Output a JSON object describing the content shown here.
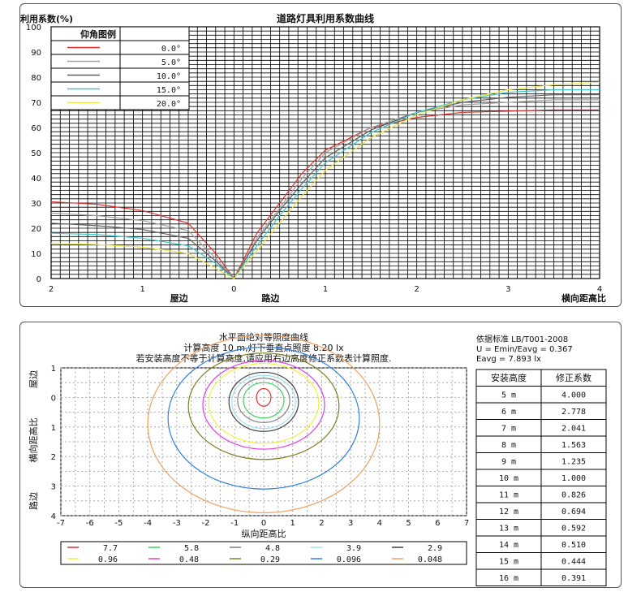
{
  "top": {
    "title": "道路灯具利用系数曲线",
    "ylabel": "利用系数(%)",
    "legend_title": "仰角图例",
    "x_side_labels": [
      "屋边",
      "路边"
    ],
    "x_axis_label": "横向距高比",
    "y_ticks": [
      "0",
      "10",
      "20",
      "30",
      "40",
      "50",
      "60",
      "70",
      "80",
      "90",
      "100"
    ],
    "x_ticks": [
      "2",
      "1",
      "0",
      "1",
      "2",
      "3",
      "4"
    ]
  },
  "bottom": {
    "title_lines": [
      "水平面绝对等照度曲线",
      "计算高度 10 m,灯下垂直点照度  8.20 lx",
      "若安装高度不等于计算高度,请应用右边高度修正系数表计算照度."
    ],
    "standard_lines": [
      "依据标准 LB/T001-2008",
      "U = Emin/Eavg = 0.367",
      "Eavg = 7.893 lx"
    ],
    "table_headers": [
      "安装高度",
      "修正系数"
    ],
    "table_rows": [
      [
        "5 m",
        "4.000"
      ],
      [
        "6 m",
        "2.778"
      ],
      [
        "7 m",
        "2.041"
      ],
      [
        "8 m",
        "1.563"
      ],
      [
        "9 m",
        "1.235"
      ],
      [
        "10 m",
        "1.000"
      ],
      [
        "11 m",
        "0.826"
      ],
      [
        "12 m",
        "0.694"
      ],
      [
        "13 m",
        "0.592"
      ],
      [
        "14 m",
        "0.510"
      ],
      [
        "15 m",
        "0.444"
      ],
      [
        "16 m",
        "0.391"
      ]
    ],
    "x_axis_label": "纵向距高比",
    "y_side_labels": [
      "屋边",
      "横向距高比",
      "路边"
    ],
    "x_ticks": [
      "-7",
      "-6",
      "-5",
      "-4",
      "-3",
      "-2",
      "-1",
      "0",
      "1",
      "2",
      "3",
      "4",
      "5",
      "6",
      "7"
    ],
    "y_ticks": [
      "1",
      "0",
      "1",
      "2",
      "3",
      "4"
    ]
  },
  "chart_data": [
    {
      "type": "line",
      "title": "道路灯具利用系数曲线",
      "ylabel": "利用系数(%)",
      "xlabel": "横向距高比",
      "xlim": [
        -2,
        4
      ],
      "ylim": [
        0,
        100
      ],
      "grid": true,
      "legend_position": "top-left",
      "series": [
        {
          "name": "0.0°",
          "color": "#e03030",
          "x": [
            -2,
            -1.5,
            -1,
            -0.5,
            -0.2,
            0,
            0.25,
            0.5,
            0.75,
            1,
            1.5,
            2,
            2.5,
            3,
            3.5,
            4
          ],
          "y": [
            30.5,
            29.5,
            27,
            22,
            10,
            0,
            18,
            30,
            42,
            51,
            60,
            64,
            66,
            66.5,
            67,
            67
          ]
        },
        {
          "name": "5.0°",
          "color": "#a0a0a0",
          "x": [
            -2,
            -1.5,
            -1,
            -0.5,
            -0.2,
            0,
            0.25,
            0.5,
            0.75,
            1,
            1.5,
            2,
            2.5,
            3,
            3.5,
            4
          ],
          "y": [
            26,
            25,
            23,
            19,
            8,
            0,
            16,
            28,
            40,
            50,
            60,
            66,
            69,
            70,
            71,
            71
          ]
        },
        {
          "name": "10.0°",
          "color": "#606060",
          "x": [
            -2,
            -1.5,
            -1,
            -0.5,
            -0.2,
            0,
            0.25,
            0.5,
            0.75,
            1,
            1.5,
            2,
            2.5,
            3,
            3.5,
            4
          ],
          "y": [
            22,
            21,
            19.5,
            16,
            7,
            0,
            15,
            27,
            38,
            48,
            59,
            66,
            70,
            72,
            73,
            73
          ]
        },
        {
          "name": "15.0°",
          "color": "#40c8c8",
          "x": [
            -2,
            -1.5,
            -1,
            -0.5,
            -0.2,
            0,
            0.25,
            0.5,
            0.75,
            1,
            1.5,
            2,
            2.5,
            3,
            3.5,
            4
          ],
          "y": [
            18,
            17.5,
            16,
            13,
            6,
            0,
            13,
            25,
            36,
            46,
            58,
            66,
            71,
            74,
            75,
            75
          ]
        },
        {
          "name": "20.0°",
          "color": "#e8e850",
          "x": [
            -2,
            -1.5,
            -1,
            -0.5,
            -0.2,
            0,
            0.25,
            0.5,
            0.75,
            1,
            1.5,
            2,
            2.5,
            3,
            3.5,
            4
          ],
          "y": [
            14,
            13.5,
            12.5,
            10,
            4,
            0,
            11,
            22,
            33,
            43,
            56,
            65,
            71,
            75,
            77,
            78
          ]
        }
      ]
    },
    {
      "type": "line",
      "title": "水平面绝对等照度曲线",
      "xlabel": "纵向距高比",
      "ylabel": "横向距高比",
      "xlim": [
        -7,
        7
      ],
      "ylim": [
        -1,
        4
      ],
      "legend_position": "bottom",
      "series": [
        {
          "name": "7.7",
          "color": "#e03030",
          "cx": 0,
          "cy": 0,
          "rx": 0.25,
          "ry": 0.3
        },
        {
          "name": "5.8",
          "color": "#40d060",
          "cx": 0,
          "cy": 0.1,
          "rx": 0.7,
          "ry": 0.6
        },
        {
          "name": "4.8",
          "color": "#808080",
          "cx": 0,
          "cy": 0.1,
          "rx": 0.9,
          "ry": 0.75
        },
        {
          "name": "3.9",
          "color": "#a0e0f0",
          "cx": 0,
          "cy": 0.15,
          "rx": 1.1,
          "ry": 0.9
        },
        {
          "name": "2.9",
          "color": "#404040",
          "cx": 0,
          "cy": 0.15,
          "rx": 1.2,
          "ry": 1.0
        },
        {
          "name": "0.96",
          "color": "#f0f040",
          "cx": 0,
          "cy": 0.2,
          "rx": 1.9,
          "ry": 1.35
        },
        {
          "name": "0.48",
          "color": "#e040e0",
          "cx": 0,
          "cy": 0.25,
          "rx": 2.1,
          "ry": 1.5
        },
        {
          "name": "0.29",
          "color": "#808020",
          "cx": 0,
          "cy": 0.3,
          "rx": 2.6,
          "ry": 1.8
        },
        {
          "name": "0.096",
          "color": "#3080e0",
          "cx": 0,
          "cy": 0.7,
          "rx": 3.3,
          "ry": 2.4
        },
        {
          "name": "0.048",
          "color": "#f0a060",
          "cx": 0,
          "cy": 0.9,
          "rx": 4.0,
          "ry": 3.0
        }
      ]
    }
  ]
}
